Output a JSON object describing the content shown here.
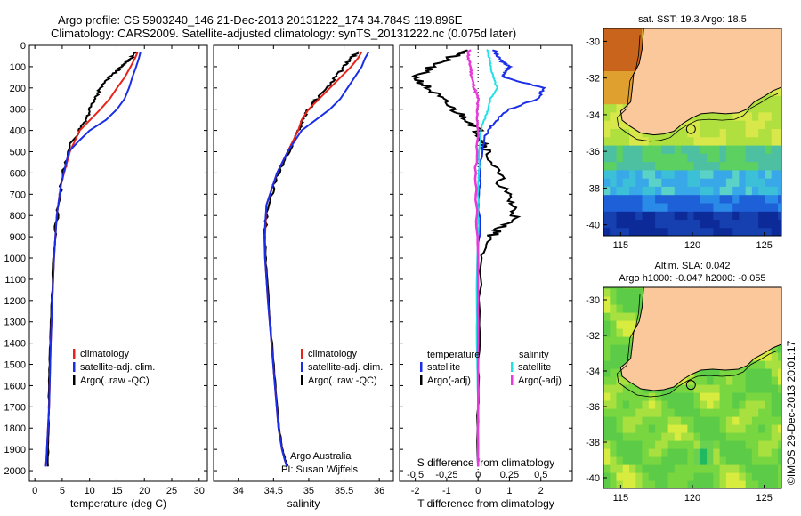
{
  "header": {
    "line1": "Argo profile: CS 5903240_146 21-Dec-2013 20131222_174 34.784S 119.896E",
    "line2": "Climatology: CARS2009. Satellite-adjusted climatology: synTS_20131222.nc (0.075d later)"
  },
  "colors": {
    "clim": "#e8231a",
    "sat": "#1a2ee8",
    "argo": "#000000",
    "sat_s": "#22e0e6",
    "argo_s": "#e63ad9",
    "land": "#fbc89c"
  },
  "chart_data": [
    {
      "type": "line",
      "id": "temperature",
      "xlabel": "temperature (deg C)",
      "ylabel": "",
      "xlim": [
        -1,
        31.5
      ],
      "ylim": [
        2050,
        0
      ],
      "xticks": [
        "0",
        "5",
        "10",
        "15",
        "20",
        "25",
        "30"
      ],
      "xtick_values": [
        0,
        5,
        10,
        15,
        20,
        25,
        30
      ],
      "yticks": [
        "0",
        "100",
        "200",
        "300",
        "400",
        "500",
        "600",
        "700",
        "800",
        "900",
        "1000",
        "1100",
        "1200",
        "1300",
        "1400",
        "1500",
        "1600",
        "1700",
        "1800",
        "1900",
        "2000"
      ],
      "ytick_values": [
        0,
        100,
        200,
        300,
        400,
        500,
        600,
        700,
        800,
        900,
        1000,
        1100,
        1200,
        1300,
        1400,
        1500,
        1600,
        1700,
        1800,
        1900,
        2000
      ],
      "legend": [
        "climatology",
        "satellite-adj. clim.",
        "Argo(..raw -QC)"
      ],
      "series": [
        {
          "name": "climatology",
          "color_key": "clim",
          "x": [
            18.8,
            18.3,
            17.5,
            16.4,
            15.0,
            13.7,
            12.0,
            10.1,
            8.2,
            6.4,
            4.8,
            4.0,
            3.5,
            3.2,
            2.9,
            2.7,
            2.6,
            2.4,
            2.3,
            2.2,
            2.1,
            2.0
          ],
          "y": [
            30,
            60,
            100,
            150,
            200,
            250,
            300,
            350,
            400,
            500,
            650,
            800,
            1000,
            1200,
            1400,
            1600,
            1700,
            1800,
            1850,
            1900,
            1950,
            1980
          ]
        },
        {
          "name": "satellite-adj. clim.",
          "color_key": "sat",
          "x": [
            19.3,
            19.0,
            18.5,
            17.8,
            17.2,
            16.4,
            15.0,
            13.0,
            10.0,
            8.0,
            6.2,
            4.8,
            4.0,
            3.5,
            3.2,
            2.9,
            2.7,
            2.6,
            2.4,
            2.3,
            2.2,
            2.1,
            2.0
          ],
          "y": [
            30,
            60,
            100,
            150,
            200,
            250,
            300,
            350,
            400,
            450,
            500,
            650,
            800,
            1000,
            1200,
            1400,
            1600,
            1700,
            1800,
            1850,
            1900,
            1950,
            1980
          ]
        },
        {
          "name": "Argo(..raw -QC)",
          "color_key": "argo",
          "x": [
            18.5,
            17.6,
            16.3,
            15.0,
            13.5,
            12.0,
            11.0,
            10.1,
            9.3,
            8.1,
            6.8,
            5.6,
            4.5,
            3.9,
            3.4,
            3.1,
            2.8,
            2.6,
            2.5,
            2.4
          ],
          "y": [
            30,
            60,
            90,
            120,
            150,
            200,
            250,
            300,
            350,
            400,
            450,
            550,
            700,
            850,
            1000,
            1200,
            1400,
            1600,
            1800,
            1980
          ]
        }
      ]
    },
    {
      "type": "line",
      "id": "salinity",
      "xlabel": "salinity",
      "xlim": [
        33.65,
        36.2
      ],
      "ylim": [
        2050,
        0
      ],
      "xticks": [
        "34",
        "34.5",
        "35",
        "35.5",
        "36"
      ],
      "xtick_values": [
        34,
        34.5,
        35,
        35.5,
        36
      ],
      "legend": [
        "climatology",
        "satellite-adj. clim.",
        "Argo(..raw -QC)"
      ],
      "annotation": [
        "Argo Australia",
        "PI: Susan Wijffels"
      ],
      "series": [
        {
          "name": "climatology",
          "color_key": "clim",
          "x": [
            35.75,
            35.7,
            35.6,
            35.45,
            35.3,
            35.15,
            35.0,
            34.9,
            34.85,
            34.7,
            34.55,
            34.4,
            34.38,
            34.38,
            34.42,
            34.47,
            34.52,
            34.57,
            34.62,
            34.66,
            34.69
          ],
          "y": [
            30,
            60,
            100,
            150,
            200,
            250,
            300,
            350,
            400,
            500,
            600,
            750,
            900,
            1000,
            1200,
            1400,
            1600,
            1800,
            1900,
            1950,
            1980
          ]
        },
        {
          "name": "satellite-adj. clim.",
          "color_key": "sat",
          "x": [
            35.85,
            35.8,
            35.75,
            35.65,
            35.55,
            35.45,
            35.3,
            35.1,
            34.9,
            34.7,
            34.55,
            34.4,
            34.37,
            34.38,
            34.42,
            34.47,
            34.52,
            34.57,
            34.62,
            34.66,
            34.69
          ],
          "y": [
            30,
            60,
            100,
            150,
            200,
            250,
            300,
            350,
            400,
            500,
            600,
            750,
            900,
            1000,
            1200,
            1400,
            1600,
            1800,
            1900,
            1950,
            1980
          ]
        },
        {
          "name": "Argo(..raw -QC)",
          "color_key": "argo",
          "x": [
            35.7,
            35.6,
            35.5,
            35.38,
            35.25,
            35.12,
            35.0,
            34.92,
            34.85,
            34.72,
            34.57,
            34.42,
            34.38,
            34.39,
            34.43,
            34.48,
            34.53,
            34.58,
            34.63,
            34.67,
            34.7
          ],
          "y": [
            30,
            60,
            100,
            150,
            200,
            250,
            300,
            350,
            400,
            500,
            600,
            750,
            900,
            1000,
            1200,
            1400,
            1600,
            1800,
            1900,
            1950,
            1980
          ]
        }
      ]
    },
    {
      "type": "line",
      "id": "difference",
      "xlabel": "T difference from climatology",
      "x2label": "S difference from climatology",
      "xlim": [
        -2.5,
        3
      ],
      "x2lim": [
        -0.625,
        0.75
      ],
      "ylim": [
        2050,
        0
      ],
      "xticks": [
        "-2",
        "-1",
        "0",
        "1",
        "2"
      ],
      "xtick_values": [
        -2,
        -1,
        0,
        1,
        2
      ],
      "x2ticks": [
        "-0.5",
        "-0.25",
        "0",
        "0.25",
        "0.5"
      ],
      "x2tick_values": [
        -0.5,
        -0.25,
        0,
        0.25,
        0.5
      ],
      "legend_headers": [
        "temperature",
        "salinity"
      ],
      "legend": [
        "satellite",
        "Argo(-adj)",
        "satellite",
        "Argo(-adj)"
      ],
      "series": [
        {
          "name": "temperature satellite",
          "color_key": "sat",
          "axis": "T",
          "x": [
            0.5,
            0.6,
            0.8,
            1.0,
            0.9,
            0.8,
            2.1,
            1.9,
            1.0,
            0.6,
            0.3,
            0.1,
            0.05,
            0.0,
            0.0,
            0.0,
            0.0
          ],
          "y": [
            20,
            50,
            80,
            100,
            120,
            150,
            200,
            250,
            300,
            350,
            400,
            500,
            700,
            1000,
            1300,
            1700,
            1980
          ]
        },
        {
          "name": "temperature Argo(-adj)",
          "color_key": "argo",
          "axis": "T",
          "x": [
            -0.2,
            -0.8,
            -1.5,
            -2.0,
            -1.6,
            -1.2,
            -0.8,
            -0.3,
            0.0,
            0.2,
            0.3,
            0.6,
            0.9,
            1.1,
            1.2,
            0.8,
            0.4,
            0.1,
            0.0,
            0.0
          ],
          "y": [
            20,
            50,
            100,
            150,
            200,
            250,
            300,
            350,
            400,
            450,
            500,
            600,
            700,
            750,
            800,
            850,
            900,
            1000,
            1500,
            1980
          ]
        },
        {
          "name": "salinity satellite",
          "color_key": "sat_s",
          "axis": "S",
          "x": [
            0.07,
            0.09,
            0.1,
            0.12,
            0.15,
            0.1,
            0.08,
            0.05,
            0.02,
            0.01,
            0.0,
            0.0,
            -0.01,
            -0.01,
            0.0,
            0.0
          ],
          "y": [
            20,
            60,
            100,
            150,
            200,
            250,
            300,
            350,
            400,
            500,
            700,
            900,
            1100,
            1400,
            1700,
            1980
          ]
        },
        {
          "name": "salinity Argo(-adj)",
          "color_key": "argo_s",
          "axis": "S",
          "x": [
            -0.07,
            -0.08,
            -0.06,
            -0.05,
            -0.03,
            0.0,
            -0.01,
            0.0,
            -0.02,
            -0.01,
            0.0,
            0.0,
            0.0,
            0.0
          ],
          "y": [
            20,
            60,
            100,
            150,
            200,
            250,
            300,
            400,
            600,
            800,
            1000,
            1400,
            1700,
            1980
          ]
        }
      ]
    },
    {
      "type": "heatmap",
      "id": "sst-map",
      "title": "sat. SST: 19.3 Argo: 18.5",
      "xticks": [
        "115",
        "120",
        "125"
      ],
      "xtick_values": [
        115,
        120,
        125
      ],
      "yticks": [
        "-30",
        "-32",
        "-34",
        "-36",
        "-38",
        "-40"
      ],
      "ytick_values": [
        -30,
        -32,
        -34,
        -36,
        -38,
        -40
      ],
      "xlim": [
        113.8,
        126.2
      ],
      "ylim": [
        -40.6,
        -29.3
      ],
      "marker": {
        "lon": 119.896,
        "lat": -34.784
      }
    },
    {
      "type": "heatmap",
      "id": "sla-map",
      "title": "Altim. SLA: 0.042",
      "subtitle": "Argo h1000: -0.047 h2000: -0.055",
      "xticks": [
        "115",
        "120",
        "125"
      ],
      "xtick_values": [
        115,
        120,
        125
      ],
      "yticks": [
        "-30",
        "-32",
        "-34",
        "-36",
        "-38",
        "-40"
      ],
      "ytick_values": [
        -30,
        -32,
        -34,
        -36,
        -38,
        -40
      ],
      "xlim": [
        113.8,
        126.2
      ],
      "ylim": [
        -40.6,
        -29.3
      ],
      "marker": {
        "lon": 119.896,
        "lat": -34.784
      }
    }
  ],
  "side_label": "©IMOS 29-Dec-2013 20:01:17"
}
